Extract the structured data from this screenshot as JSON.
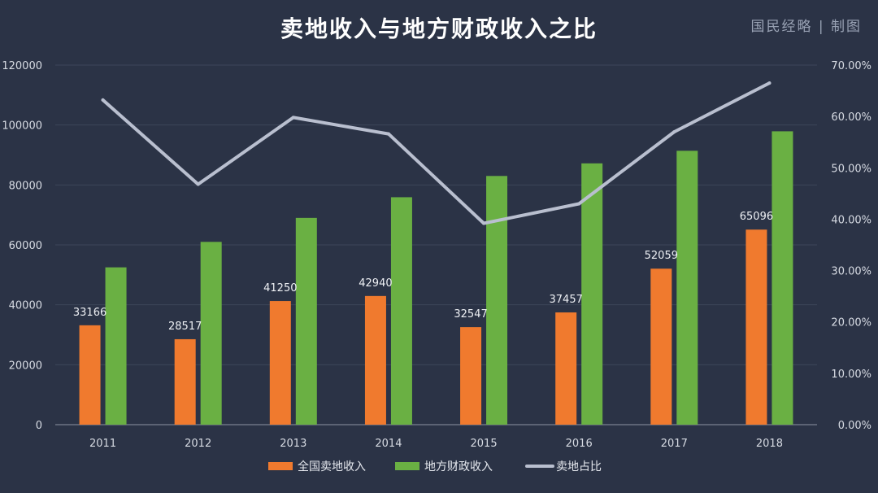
{
  "header": {
    "title": "卖地收入与地方财政收入之比",
    "brand": "国民经略 | 制图"
  },
  "colors": {
    "background": "#2b3346",
    "land_sales": "#f07a2e",
    "local_revenue": "#6ab043",
    "ratio_line": "#b9bfcf",
    "grid": "#3d4659"
  },
  "chart_data": {
    "type": "bar",
    "title": "卖地收入与地方财政收入之比",
    "categories": [
      "2011",
      "2012",
      "2013",
      "2014",
      "2015",
      "2016",
      "2017",
      "2018"
    ],
    "series": [
      {
        "name": "全国卖地收入",
        "type": "bar",
        "axis": "left",
        "values": [
          33166,
          28517,
          41250,
          42940,
          32547,
          37457,
          52059,
          65096
        ],
        "labels": [
          "33166",
          "28517",
          "41250",
          "42940",
          "32547",
          "37457",
          "52059",
          "65096"
        ]
      },
      {
        "name": "地方财政收入",
        "type": "bar",
        "axis": "left",
        "values": [
          52500,
          61000,
          69000,
          75900,
          83000,
          87200,
          91400,
          97900
        ]
      },
      {
        "name": "卖地占比",
        "type": "line",
        "axis": "right",
        "values": [
          0.632,
          0.468,
          0.598,
          0.566,
          0.392,
          0.43,
          0.57,
          0.665
        ]
      }
    ],
    "y_left": {
      "min": 0,
      "max": 120000,
      "ticks": [
        "0",
        "20000",
        "40000",
        "60000",
        "80000",
        "100000",
        "120000"
      ]
    },
    "y_right": {
      "min": 0,
      "max": 0.7,
      "ticks": [
        "0.00%",
        "10.00%",
        "20.00%",
        "30.00%",
        "40.00%",
        "50.00%",
        "60.00%",
        "70.00%"
      ]
    },
    "grid": true,
    "legend_position": "bottom"
  }
}
